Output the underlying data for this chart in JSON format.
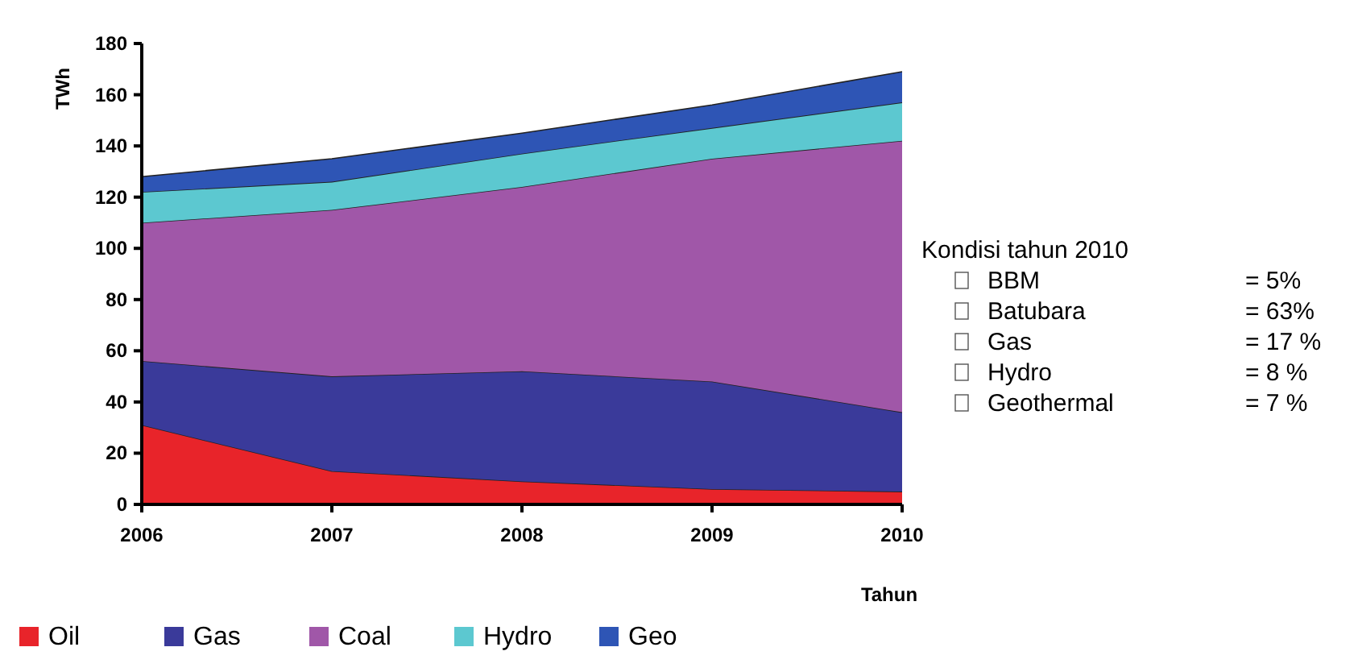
{
  "chart_data": {
    "type": "area",
    "stacked": true,
    "xlabel": "Tahun",
    "ylabel": "TWh",
    "x": [
      2006,
      2007,
      2008,
      2009,
      2010
    ],
    "xlim": [
      2006,
      2010
    ],
    "xticks": [
      2006,
      2007,
      2008,
      2009,
      2010
    ],
    "ylim": [
      0,
      180
    ],
    "yticks": [
      0,
      20,
      40,
      60,
      80,
      100,
      120,
      140,
      160,
      180
    ],
    "grid": false,
    "legend": "bottom",
    "series": [
      {
        "name": "Oil",
        "color": "#e8242a",
        "values": [
          31,
          13,
          9,
          6,
          5
        ]
      },
      {
        "name": "Gas",
        "color": "#3a3a9a",
        "values": [
          25,
          37,
          43,
          42,
          31
        ]
      },
      {
        "name": "Coal",
        "color": "#a057a8",
        "values": [
          54,
          65,
          72,
          87,
          106
        ]
      },
      {
        "name": "Hydro",
        "color": "#5cc8d0",
        "values": [
          12,
          11,
          13,
          12,
          15
        ]
      },
      {
        "name": "Geo",
        "color": "#2e55b5",
        "values": [
          6,
          9,
          8,
          9,
          12
        ]
      }
    ],
    "annotations": [
      "Kondisi tahun 2010",
      "BBM = 5%",
      "Batubara = 63%",
      "Gas = 17 %",
      "Hydro = 8 %",
      "Geothermal = 7 %"
    ]
  }
}
